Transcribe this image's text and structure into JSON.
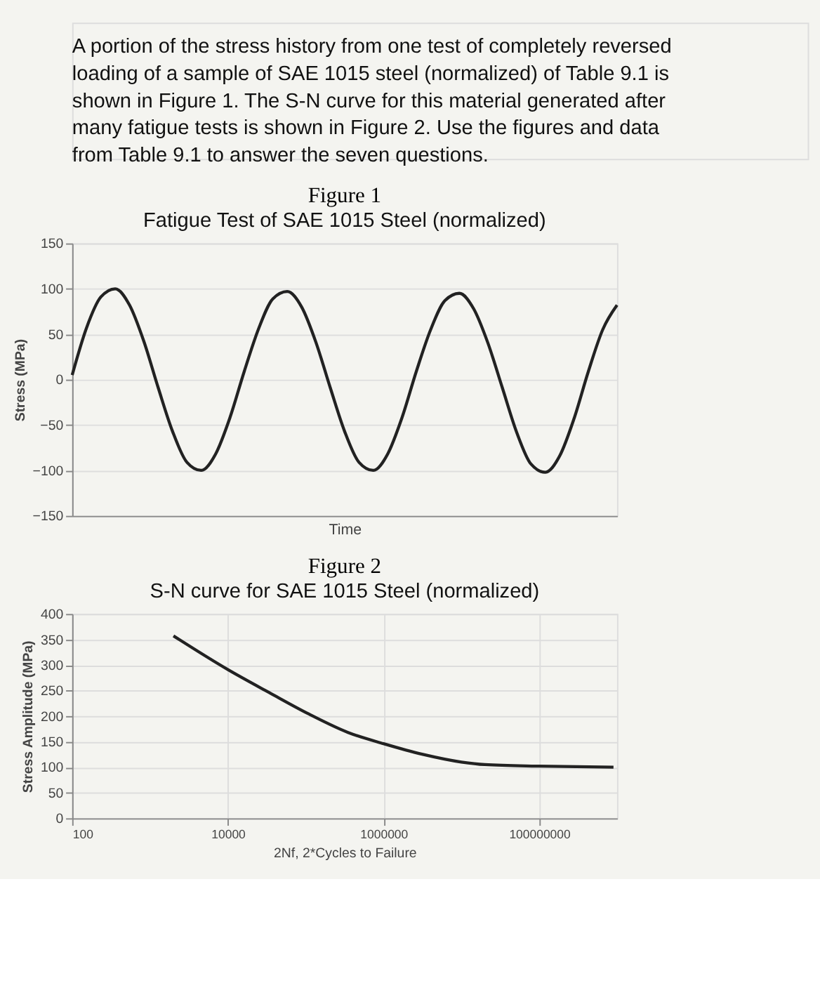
{
  "chart_data": [
    {
      "type": "line",
      "title": "Fatigue Test of SAE 1015 Steel (normalized)",
      "annotations": [
        "A portion of the stress history from one test of completely reversed loading of a sample of SAE 1015 steel (normalized) of Table 9.1 is shown in Figure 1. The S-N curve for this material generated after many fatigue tests is shown in Figure 2. Use the figures and data from Table 9.1 to answer the seven questions.",
        "Figure 1"
      ],
      "xlabel": "Time",
      "ylabel": "Stress (MPa)",
      "categories": [
        null,
        null,
        null,
        null,
        null,
        null,
        null,
        null,
        null,
        null,
        null,
        null,
        null,
        null,
        null,
        null,
        null,
        null,
        null,
        null,
        null,
        null,
        null,
        null,
        null,
        null,
        null,
        null,
        null,
        null,
        null,
        null,
        null,
        null,
        null,
        null,
        null,
        null,
        null
      ],
      "series": [
        {
          "color": "#222222",
          "values": [
            5,
            57,
            91,
            100,
            82,
            42,
            -9,
            -57,
            -91,
            -100,
            -82,
            -42,
            9,
            56,
            89,
            97,
            80,
            41,
            -9,
            -57,
            -91,
            -100,
            -82,
            -42,
            9,
            55,
            87,
            95,
            78,
            40,
            -9,
            -58,
            -93,
            -102,
            -84,
            -43,
            9,
            55,
            82
          ]
        }
      ],
      "ylim": [
        -150,
        150
      ],
      "yticks": [
        -150,
        -100,
        -50,
        0,
        50,
        100,
        150
      ],
      "grid": "y",
      "tick_labels": "y",
      "marker": "none",
      "legend": false
    },
    {
      "type": "line",
      "title": "S-N curve for SAE 1015 Steel (normalized)",
      "annotations": [
        "Figure 2"
      ],
      "xlabel": "2Nf, 2*Cycles to Failure",
      "ylabel": "Stress Amplitude (MPa)",
      "x": [
        2000,
        10000,
        34000,
        110000,
        350000,
        1000000,
        3200000,
        10000000,
        20000000,
        100000000,
        900000000
      ],
      "series": [
        {
          "color": "#222222",
          "values": [
            357,
            291,
            246,
            204,
            168,
            146,
            125,
            110,
            105,
            102,
            100
          ]
        }
      ],
      "xlim": [
        100,
        1000000000
      ],
      "xticks": [
        100,
        10000,
        1000000,
        100000000
      ],
      "ylim": [
        0,
        400
      ],
      "yticks": [
        0,
        50,
        100,
        150,
        200,
        250,
        300,
        350,
        400
      ],
      "log": "x",
      "grid": true,
      "marker": "none",
      "legend": false
    }
  ]
}
